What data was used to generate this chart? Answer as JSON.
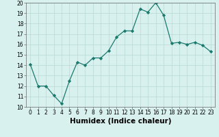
{
  "xlabel": "Humidex (Indice chaleur)",
  "x": [
    0,
    1,
    2,
    3,
    4,
    5,
    6,
    7,
    8,
    9,
    10,
    11,
    12,
    13,
    14,
    15,
    16,
    17,
    18,
    19,
    20,
    21,
    22,
    23
  ],
  "y": [
    14.1,
    12.0,
    12.0,
    11.1,
    10.3,
    12.5,
    14.3,
    14.0,
    14.7,
    14.7,
    15.4,
    16.7,
    17.3,
    17.3,
    19.4,
    19.1,
    20.0,
    18.8,
    16.1,
    16.2,
    16.0,
    16.2,
    15.9,
    15.3
  ],
  "line_color": "#1a7a6e",
  "marker": "D",
  "marker_size": 2.2,
  "bg_color": "#d8f0ee",
  "grid_color": "#b8d8d4",
  "ylim": [
    10,
    20
  ],
  "xlim": [
    -0.5,
    23.5
  ],
  "yticks": [
    10,
    11,
    12,
    13,
    14,
    15,
    16,
    17,
    18,
    19,
    20
  ],
  "xticks": [
    0,
    1,
    2,
    3,
    4,
    5,
    6,
    7,
    8,
    9,
    10,
    11,
    12,
    13,
    14,
    15,
    16,
    17,
    18,
    19,
    20,
    21,
    22,
    23
  ],
  "tick_fontsize": 5.5,
  "xlabel_fontsize": 7.5
}
